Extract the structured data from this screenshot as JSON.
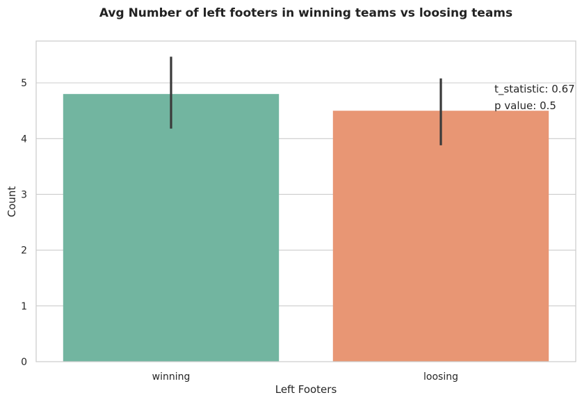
{
  "chart_data": {
    "type": "bar",
    "title": "Avg Number of left footers in winning teams vs loosing teams",
    "xlabel": "Left Footers",
    "ylabel": "Count",
    "categories": [
      "winning",
      "loosing"
    ],
    "values": [
      4.8,
      4.5
    ],
    "error_bars": [
      {
        "low": 4.18,
        "high": 5.47
      },
      {
        "low": 3.88,
        "high": 5.08
      }
    ],
    "colors": [
      "#72b5a0",
      "#e89674"
    ],
    "error_bar_color": "#3a3a3a",
    "ylim": [
      0,
      5.75
    ],
    "yticks": [
      0,
      1,
      2,
      3,
      4,
      5
    ],
    "grid": true,
    "annotations": [
      "t_statistic: 0.67",
      "p value: 0.5"
    ]
  }
}
